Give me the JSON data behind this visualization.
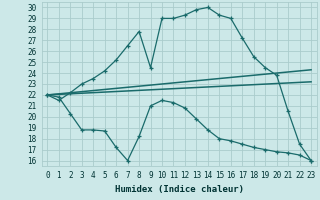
{
  "xlabel": "Humidex (Indice chaleur)",
  "background_color": "#cce8e8",
  "grid_color": "#aacccc",
  "line_color": "#1a6b6b",
  "xlim": [
    -0.5,
    23.5
  ],
  "ylim": [
    15.5,
    30.5
  ],
  "xticks": [
    0,
    1,
    2,
    3,
    4,
    5,
    6,
    7,
    8,
    9,
    10,
    11,
    12,
    13,
    14,
    15,
    16,
    17,
    18,
    19,
    20,
    21,
    22,
    23
  ],
  "yticks": [
    16,
    17,
    18,
    19,
    20,
    21,
    22,
    23,
    24,
    25,
    26,
    27,
    28,
    29,
    30
  ],
  "curve1_x": [
    0,
    1,
    2,
    3,
    4,
    5,
    6,
    7,
    8,
    9,
    10,
    11,
    12,
    13,
    14,
    15,
    16,
    17,
    18,
    19,
    20,
    21,
    22,
    23
  ],
  "curve1_y": [
    22.0,
    21.5,
    22.2,
    23.0,
    23.5,
    24.2,
    25.2,
    26.5,
    27.8,
    24.5,
    29.0,
    29.0,
    29.3,
    29.8,
    30.0,
    29.3,
    29.0,
    27.2,
    25.5,
    24.5,
    23.8,
    20.5,
    17.5,
    16.0
  ],
  "curve2_x": [
    0,
    23
  ],
  "curve2_y": [
    22.0,
    24.3
  ],
  "curve3_x": [
    0,
    23
  ],
  "curve3_y": [
    22.0,
    23.2
  ],
  "curve4_x": [
    0,
    1,
    2,
    3,
    4,
    5,
    6,
    7,
    8,
    9,
    10,
    11,
    12,
    13,
    14,
    15,
    16,
    17,
    18,
    19,
    20,
    21,
    22,
    23
  ],
  "curve4_y": [
    22.0,
    21.8,
    20.3,
    18.8,
    18.8,
    18.7,
    17.2,
    16.0,
    18.2,
    21.0,
    21.5,
    21.3,
    20.8,
    19.8,
    18.8,
    18.0,
    17.8,
    17.5,
    17.2,
    17.0,
    16.8,
    16.7,
    16.5,
    16.0
  ]
}
